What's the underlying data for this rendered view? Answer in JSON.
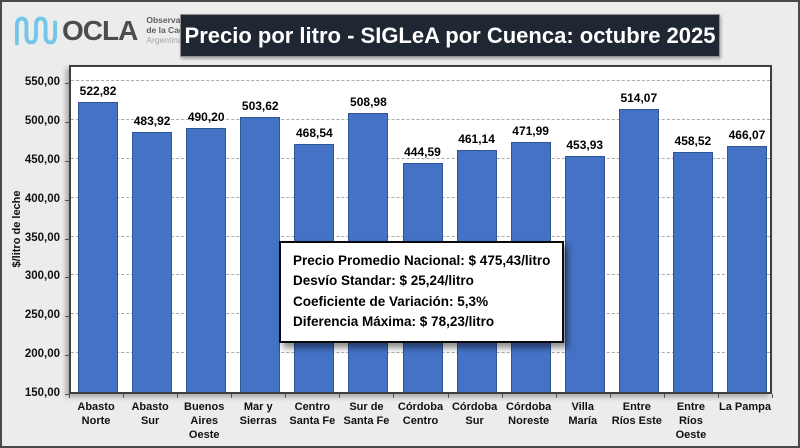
{
  "header": {
    "logo": {
      "name": "OCLA",
      "subtitle_line1": "Observatorio",
      "subtitle_line2": "de la Cadena Láctea",
      "subtitle_line3": "Argentina"
    },
    "title": "Precio por litro - SIGLeA por Cuenca: octubre 2025"
  },
  "chart_data": {
    "type": "bar",
    "title": "Precio por litro - SIGLeA por Cuenca: octubre 2025",
    "xlabel": "",
    "ylabel": "$/litro de leche",
    "ylim": [
      150,
      550
    ],
    "ytick_step": 50,
    "ytick_labels": [
      "550,00",
      "500,00",
      "450,00",
      "400,00",
      "350,00",
      "300,00",
      "250,00",
      "200,00",
      "150,00"
    ],
    "grid": "horizontal-dashed",
    "legend": "none",
    "categories": [
      "Abasto Norte",
      "Abasto Sur",
      "Buenos Aires Oeste",
      "Mar y Sierras",
      "Centro Santa Fe",
      "Sur de Santa Fe",
      "Córdoba Centro",
      "Córdoba Sur",
      "Córdoba Noreste",
      "Villa María",
      "Entre Ríos Este",
      "Entre Ríos Oeste",
      "La Pampa"
    ],
    "values": [
      522.82,
      483.92,
      490.2,
      503.62,
      468.54,
      508.98,
      444.59,
      461.14,
      471.99,
      453.93,
      514.07,
      458.52,
      466.07
    ],
    "value_labels": [
      "522,82",
      "483,92",
      "490,20",
      "503,62",
      "468,54",
      "508,98",
      "444,59",
      "461,14",
      "471,99",
      "453,93",
      "514,07",
      "458,52",
      "466,07"
    ]
  },
  "stats_box": {
    "lines": [
      "Precio Promedio Nacional: $ 475,43/litro",
      "Desvío Standar: $ 25,24/litro",
      "Coeficiente de Variación: 5,3%",
      "Diferencia Máxima: $ 78,23/litro"
    ]
  },
  "colors": {
    "bar_fill": "#4472C4",
    "bar_border": "#2F5597",
    "title_bar_background": "#1F2733",
    "title_bar_text": "#FFFFFF",
    "page_background": "#ECECEC",
    "plot_background": "#FFFFFF",
    "gridline": "#ABABAB",
    "logo_wave_blue": "#74C6E9"
  }
}
